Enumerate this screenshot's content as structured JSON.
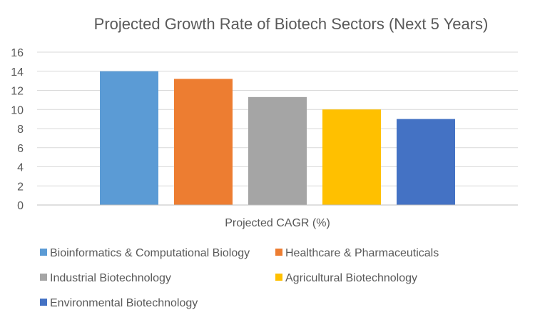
{
  "chart_data": {
    "type": "bar",
    "title": "Projected Growth Rate of Biotech Sectors (Next 5 Years)",
    "xlabel": "Projected CAGR (%)",
    "ylabel": "",
    "ylim": [
      0,
      16
    ],
    "yticks": [
      "0",
      "2",
      "4",
      "6",
      "8",
      "10",
      "12",
      "14",
      "16"
    ],
    "grid": true,
    "legend_position": "bottom",
    "series": [
      {
        "name": "Bioinformatics & Computational Biology",
        "value": 14.0,
        "color": "#5B9BD5"
      },
      {
        "name": "Healthcare & Pharmaceuticals",
        "value": 13.2,
        "color": "#ED7D31"
      },
      {
        "name": "Industrial Biotechnology",
        "value": 11.3,
        "color": "#A5A5A5"
      },
      {
        "name": "Agricultural Biotechnology",
        "value": 10.0,
        "color": "#FFC000"
      },
      {
        "name": "Environmental Biotechnology",
        "value": 9.0,
        "color": "#4472C4"
      }
    ]
  }
}
